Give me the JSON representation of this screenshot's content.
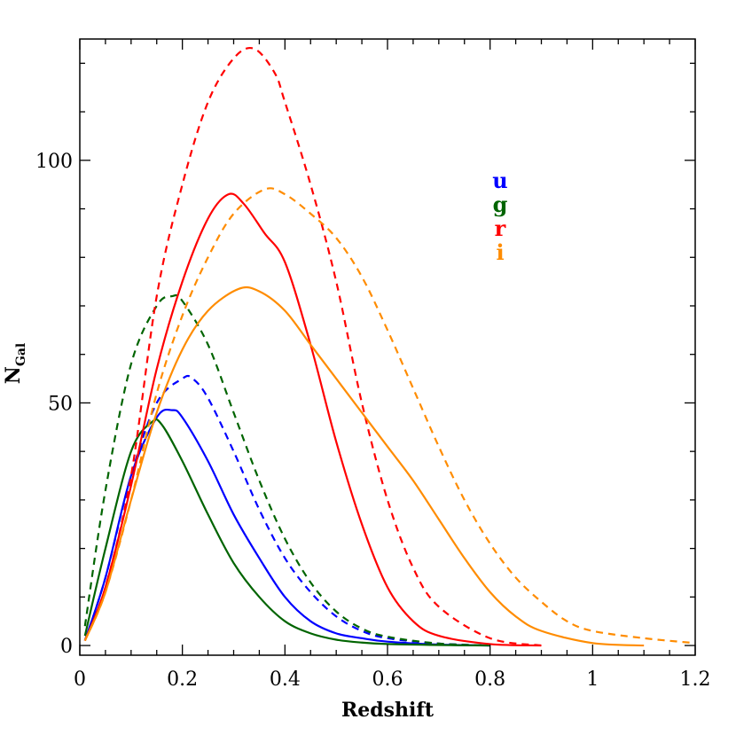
{
  "chart_data": {
    "type": "line",
    "title": "",
    "xlabel": "Redshift",
    "ylabel_main": "N",
    "ylabel_sub": "Gal",
    "xlim": [
      0,
      1.2
    ],
    "ylim": [
      -2,
      125
    ],
    "x_ticks": [
      0,
      0.2,
      0.4,
      0.6,
      0.8,
      1,
      1.2
    ],
    "x_tick_labels": [
      "0",
      "0.2",
      "0.4",
      "0.6",
      "0.8",
      "1",
      "1.2"
    ],
    "y_ticks": [
      0,
      50,
      100
    ],
    "y_tick_labels": [
      "0",
      "50",
      "100"
    ],
    "legend": {
      "placement": "top-right",
      "entries": [
        {
          "label": "u",
          "color": "#0000ff"
        },
        {
          "label": "g",
          "color": "#006400"
        },
        {
          "label": "r",
          "color": "#ff0000"
        },
        {
          "label": "i",
          "color": "#ff8c00"
        }
      ]
    },
    "series": [
      {
        "name": "u solid",
        "band": "u",
        "style": "solid",
        "color": "#0000ff",
        "x": [
          0.01,
          0.05,
          0.1,
          0.15,
          0.18,
          0.2,
          0.25,
          0.3,
          0.35,
          0.4,
          0.45,
          0.5,
          0.55,
          0.6,
          0.7,
          0.8
        ],
        "y": [
          1,
          14,
          35,
          47,
          48.5,
          47,
          38,
          27,
          18,
          10,
          5,
          2.5,
          1.5,
          0.8,
          0.2,
          0
        ]
      },
      {
        "name": "u dashed",
        "band": "u",
        "style": "dashed",
        "color": "#0000ff",
        "x": [
          0.01,
          0.05,
          0.1,
          0.15,
          0.2,
          0.22,
          0.25,
          0.3,
          0.35,
          0.4,
          0.45,
          0.5,
          0.55,
          0.6,
          0.7,
          0.8
        ],
        "y": [
          1,
          14,
          35,
          50,
          55,
          55,
          51,
          40,
          28,
          18,
          11,
          6,
          3,
          1.5,
          0.4,
          0
        ]
      },
      {
        "name": "g solid",
        "band": "g",
        "style": "solid",
        "color": "#006400",
        "x": [
          0.01,
          0.05,
          0.1,
          0.14,
          0.16,
          0.2,
          0.25,
          0.3,
          0.35,
          0.4,
          0.45,
          0.5,
          0.55,
          0.6,
          0.7,
          0.8
        ],
        "y": [
          2,
          20,
          40,
          46,
          45.5,
          38,
          27,
          17,
          10,
          5,
          2.5,
          1.2,
          0.6,
          0.3,
          0.1,
          0
        ],
        "x_shift": 0
      },
      {
        "name": "g dashed",
        "band": "g",
        "style": "dashed",
        "color": "#006400",
        "x": [
          0.01,
          0.05,
          0.1,
          0.15,
          0.18,
          0.2,
          0.25,
          0.3,
          0.35,
          0.4,
          0.45,
          0.5,
          0.55,
          0.6,
          0.7,
          0.8
        ],
        "y": [
          4,
          32,
          58,
          70,
          72,
          71,
          62,
          48,
          34,
          22,
          13,
          7,
          3.5,
          1.8,
          0.4,
          0
        ]
      },
      {
        "name": "r solid",
        "band": "r",
        "style": "solid",
        "color": "#ff0000",
        "x": [
          0.01,
          0.05,
          0.1,
          0.15,
          0.2,
          0.25,
          0.29,
          0.32,
          0.36,
          0.4,
          0.45,
          0.5,
          0.55,
          0.6,
          0.65,
          0.7,
          0.8,
          0.9
        ],
        "y": [
          1,
          12,
          33,
          57,
          75,
          88,
          93,
          91,
          85,
          79,
          62,
          42,
          25,
          12,
          5,
          2,
          0.3,
          0
        ]
      },
      {
        "name": "r dashed",
        "band": "r",
        "style": "dashed",
        "color": "#ff0000",
        "x": [
          0.01,
          0.05,
          0.1,
          0.15,
          0.2,
          0.25,
          0.3,
          0.34,
          0.38,
          0.4,
          0.45,
          0.5,
          0.55,
          0.6,
          0.65,
          0.7,
          0.8,
          0.9
        ],
        "y": [
          1,
          12,
          35,
          72,
          95,
          112,
          121,
          123,
          118,
          112,
          95,
          75,
          50,
          30,
          16,
          8,
          1.5,
          0
        ]
      },
      {
        "name": "i solid",
        "band": "i",
        "style": "solid",
        "color": "#ff8c00",
        "x": [
          0.01,
          0.05,
          0.1,
          0.15,
          0.2,
          0.25,
          0.31,
          0.35,
          0.4,
          0.45,
          0.5,
          0.55,
          0.6,
          0.65,
          0.7,
          0.75,
          0.8,
          0.85,
          0.9,
          1.0,
          1.1
        ],
        "y": [
          1,
          11,
          30,
          48,
          61,
          69,
          73.5,
          73,
          69,
          62,
          55,
          48,
          41,
          34,
          26,
          18,
          11,
          6,
          3,
          0.5,
          0
        ]
      },
      {
        "name": "i dashed",
        "band": "i",
        "style": "dashed",
        "color": "#ff8c00",
        "x": [
          0.01,
          0.05,
          0.1,
          0.15,
          0.2,
          0.25,
          0.3,
          0.36,
          0.4,
          0.45,
          0.5,
          0.55,
          0.6,
          0.65,
          0.7,
          0.75,
          0.8,
          0.85,
          0.9,
          0.95,
          1.0,
          1.1,
          1.2
        ],
        "y": [
          1,
          11,
          30,
          52,
          68,
          80,
          89,
          94,
          93,
          89,
          84,
          76,
          65,
          53,
          41,
          30,
          21,
          14,
          9,
          5,
          3,
          1.5,
          0.5
        ]
      }
    ]
  }
}
